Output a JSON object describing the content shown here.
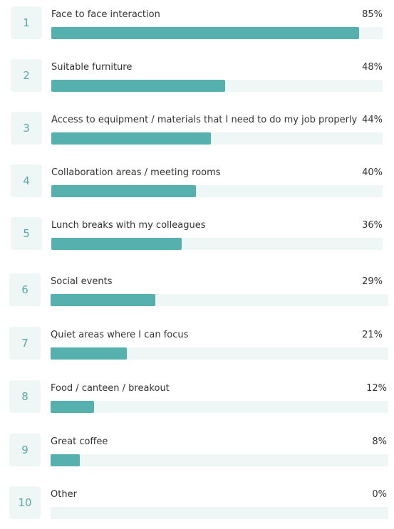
{
  "chart_data": {
    "type": "bar",
    "orientation": "horizontal",
    "bar_color": "#56b0ad",
    "track_color": "#eef6f6",
    "rank_color": "#5aa8a8",
    "items": [
      {
        "rank": "1",
        "label": "Face to face interaction",
        "value": 85,
        "value_label": "85%"
      },
      {
        "rank": "2",
        "label": "Suitable furniture",
        "value": 48,
        "value_label": "48%"
      },
      {
        "rank": "3",
        "label": "Access to equipment / materials that I need to do my job properly",
        "value": 44,
        "value_label": "44%"
      },
      {
        "rank": "4",
        "label": "Collaboration areas / meeting rooms",
        "value": 40,
        "value_label": "40%"
      },
      {
        "rank": "5",
        "label": "Lunch breaks with my colleagues",
        "value": 36,
        "value_label": "36%"
      },
      {
        "rank": "6",
        "label": "Social events",
        "value": 29,
        "value_label": "29%"
      },
      {
        "rank": "7",
        "label": "Quiet areas where I can focus",
        "value": 21,
        "value_label": "21%"
      },
      {
        "rank": "8",
        "label": "Food / canteen / breakout",
        "value": 12,
        "value_label": "12%"
      },
      {
        "rank": "9",
        "label": "Great coffee",
        "value": 8,
        "value_label": "8%"
      },
      {
        "rank": "10",
        "label": "Other",
        "value": 0,
        "value_label": "0%"
      }
    ]
  }
}
